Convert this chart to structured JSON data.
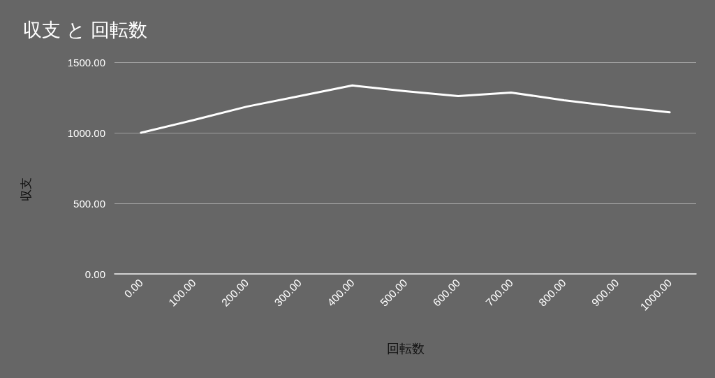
{
  "chart_data": {
    "type": "line",
    "title": "収支 と 回転数",
    "xlabel": "回転数",
    "ylabel": "収支",
    "categories": [
      "0.00",
      "100.00",
      "200.00",
      "300.00",
      "400.00",
      "500.00",
      "600.00",
      "700.00",
      "800.00",
      "900.00",
      "1000.00"
    ],
    "values": [
      1000,
      1090,
      1185,
      1260,
      1335,
      1295,
      1260,
      1285,
      1230,
      1185,
      1145
    ],
    "color": "#ffffff",
    "ylim": [
      0,
      1500
    ],
    "yticks": [
      {
        "value": 0,
        "label": "0.00"
      },
      {
        "value": 500,
        "label": "500.00"
      },
      {
        "value": 1000,
        "label": "1000.00"
      },
      {
        "value": 1500,
        "label": "1500.00"
      }
    ],
    "grid": "y"
  }
}
